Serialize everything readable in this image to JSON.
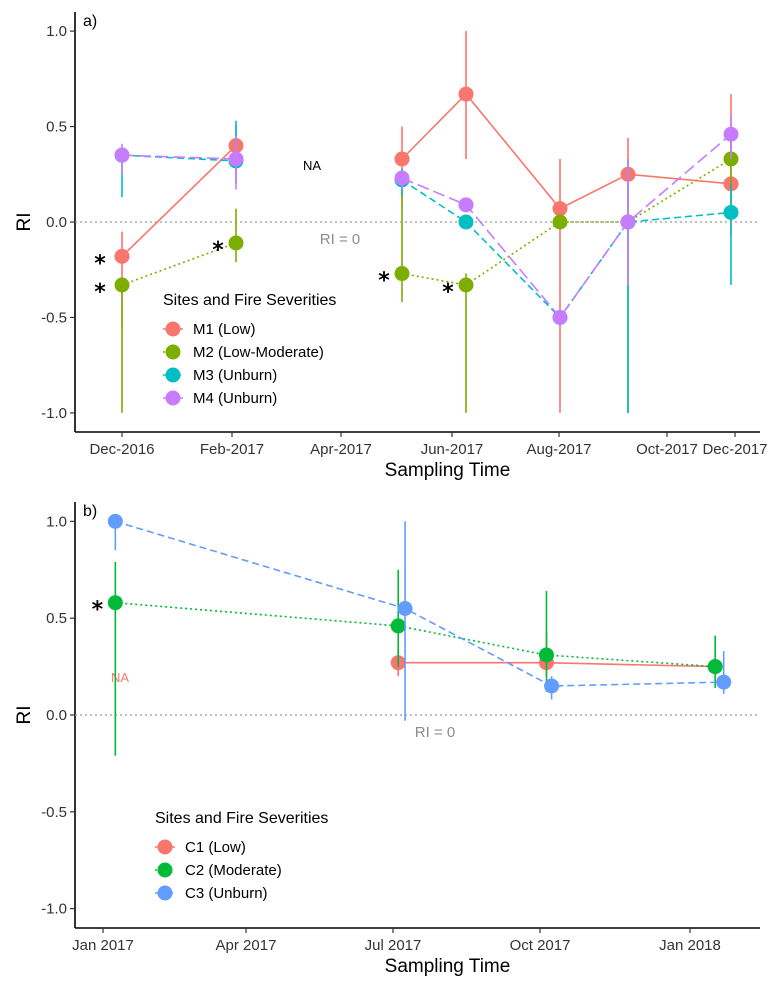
{
  "chart_data": [
    {
      "panel_label": "a)",
      "type": "line",
      "xlabel": "Sampling Time",
      "ylabel": "RI",
      "ylim": [
        -1.1,
        1.1
      ],
      "yticks": [
        "1.0",
        "0.5",
        "0.0",
        "-0.5",
        "-1.0"
      ],
      "xticks": [
        "Dec-2016",
        "Feb-2017",
        "Apr-2017",
        "Jun-2017",
        "Aug-2017",
        "Oct-2017",
        "Dec-2017"
      ],
      "reference_line": {
        "y": 0,
        "label": "RI = 0"
      },
      "na_label": "NA",
      "legend": {
        "title": "Sites and Fire Severities",
        "placement": "bottom-left"
      },
      "series": [
        {
          "name": "M1 (Low)",
          "color": "#F8766D",
          "linestyle": "solid",
          "points": [
            {
              "x": "Dec-2016",
              "y": -0.18,
              "lo": -0.56,
              "hi": -0.05,
              "star": true
            },
            {
              "x": "Feb-2017",
              "y": 0.4,
              "lo": 0.26,
              "hi": 0.51
            },
            {
              "x": "Jun-2017",
              "y": 0.33,
              "lo": 0.08,
              "hi": 0.5
            },
            {
              "x": "Jul-2017",
              "y": 0.67,
              "lo": 0.33,
              "hi": 1.0
            },
            {
              "x": "Aug-2017",
              "y": 0.07,
              "lo": -1.0,
              "hi": 0.33
            },
            {
              "x": "Sep-2017",
              "y": 0.25,
              "lo": 0.0,
              "hi": 0.44
            },
            {
              "x": "Nov-2017",
              "y": 0.2,
              "lo": -0.07,
              "hi": 0.67
            }
          ]
        },
        {
          "name": "M2 (Low-Moderate)",
          "color": "#7CAE00",
          "linestyle": "dotted",
          "points": [
            {
              "x": "Dec-2016",
              "y": -0.33,
              "lo": -1.0,
              "hi": -0.3,
              "star": true
            },
            {
              "x": "Feb-2017",
              "y": -0.11,
              "lo": -0.21,
              "hi": 0.07,
              "star": true
            },
            {
              "x": "Jun-2017",
              "y": -0.27,
              "lo": -0.42,
              "hi": 0.25,
              "star": true
            },
            {
              "x": "Jul-2017",
              "y": -0.33,
              "lo": -1.0,
              "hi": -0.27,
              "star": true
            },
            {
              "x": "Aug-2017",
              "y": 0.0,
              "lo": 0.0,
              "hi": 0.0
            },
            {
              "x": "Sep-2017",
              "y": 0.0,
              "lo": -1.0,
              "hi": 0.0
            },
            {
              "x": "Nov-2017",
              "y": 0.33,
              "lo": 0.0,
              "hi": 0.5
            }
          ]
        },
        {
          "name": "M3 (Unburn)",
          "color": "#00BFC4",
          "linestyle": "dashed",
          "points": [
            {
              "x": "Dec-2016",
              "y": 0.35,
              "lo": 0.13,
              "hi": 0.38
            },
            {
              "x": "Feb-2017",
              "y": 0.32,
              "lo": 0.2,
              "hi": 0.53
            },
            {
              "x": "Jun-2017",
              "y": 0.22,
              "lo": 0.14,
              "hi": 0.28
            },
            {
              "x": "Jul-2017",
              "y": 0.0,
              "lo": 0.0,
              "hi": 0.0
            },
            {
              "x": "Aug-2017",
              "y": -0.5,
              "lo": -0.5,
              "hi": -0.5
            },
            {
              "x": "Sep-2017",
              "y": 0.0,
              "lo": -1.0,
              "hi": 0.33
            },
            {
              "x": "Nov-2017",
              "y": 0.05,
              "lo": -0.33,
              "hi": 0.2
            }
          ]
        },
        {
          "name": "M4 (Unburn)",
          "color": "#C77CFF",
          "linestyle": "longdash",
          "points": [
            {
              "x": "Dec-2016",
              "y": 0.35,
              "lo": 0.25,
              "hi": 0.41
            },
            {
              "x": "Feb-2017",
              "y": 0.33,
              "lo": 0.17,
              "hi": 0.45
            },
            {
              "x": "Jun-2017",
              "y": 0.23,
              "lo": 0.17,
              "hi": 0.27
            },
            {
              "x": "Jul-2017",
              "y": 0.09,
              "lo": 0.09,
              "hi": 0.09
            },
            {
              "x": "Aug-2017",
              "y": -0.5,
              "lo": -0.5,
              "hi": -0.5
            },
            {
              "x": "Sep-2017",
              "y": 0.0,
              "lo": -0.33,
              "hi": 0.33
            },
            {
              "x": "Nov-2017",
              "y": 0.46,
              "lo": 0.33,
              "hi": 0.56
            }
          ]
        }
      ]
    },
    {
      "panel_label": "b)",
      "type": "line",
      "xlabel": "Sampling Time",
      "ylabel": "RI",
      "ylim": [
        -1.1,
        1.1
      ],
      "yticks": [
        "1.0",
        "0.5",
        "0.0",
        "-0.5",
        "-1.0"
      ],
      "xticks": [
        "Jan 2017",
        "Apr 2017",
        "Jul 2017",
        "Oct 2017",
        "Jan 2018"
      ],
      "reference_line": {
        "y": 0,
        "label": "RI = 0"
      },
      "na_label": "NA",
      "legend": {
        "title": "Sites and Fire Severities",
        "placement": "bottom-left"
      },
      "series": [
        {
          "name": "C1 (Low)",
          "color": "#F8766D",
          "linestyle": "solid",
          "points": [
            {
              "x": "2017-06-25",
              "y": 0.27,
              "lo": 0.2,
              "hi": 0.33
            },
            {
              "x": "2017-09-20",
              "y": 0.27,
              "lo": 0.2,
              "hi": 0.43
            },
            {
              "x": "2017-12-28",
              "y": 0.25,
              "lo": 0.22,
              "hi": 0.3
            }
          ]
        },
        {
          "name": "C2 (Moderate)",
          "color": "#00BA38",
          "linestyle": "dotted",
          "points": [
            {
              "x": "2017-01-10",
              "y": 0.58,
              "lo": -0.21,
              "hi": 0.79,
              "star": true
            },
            {
              "x": "2017-06-25",
              "y": 0.46,
              "lo": 0.25,
              "hi": 0.75
            },
            {
              "x": "2017-09-20",
              "y": 0.31,
              "lo": 0.12,
              "hi": 0.64
            },
            {
              "x": "2017-12-28",
              "y": 0.25,
              "lo": 0.14,
              "hi": 0.41
            }
          ]
        },
        {
          "name": "C3 (Unburn)",
          "color": "#619CFF",
          "linestyle": "dashed",
          "points": [
            {
              "x": "2017-01-10",
              "y": 1.0,
              "lo": 0.85,
              "hi": 1.0
            },
            {
              "x": "2017-06-29",
              "y": 0.55,
              "lo": -0.03,
              "hi": 1.0
            },
            {
              "x": "2017-09-23",
              "y": 0.15,
              "lo": 0.08,
              "hi": 0.2
            },
            {
              "x": "2018-01-02",
              "y": 0.17,
              "lo": 0.11,
              "hi": 0.33
            }
          ]
        }
      ]
    }
  ]
}
